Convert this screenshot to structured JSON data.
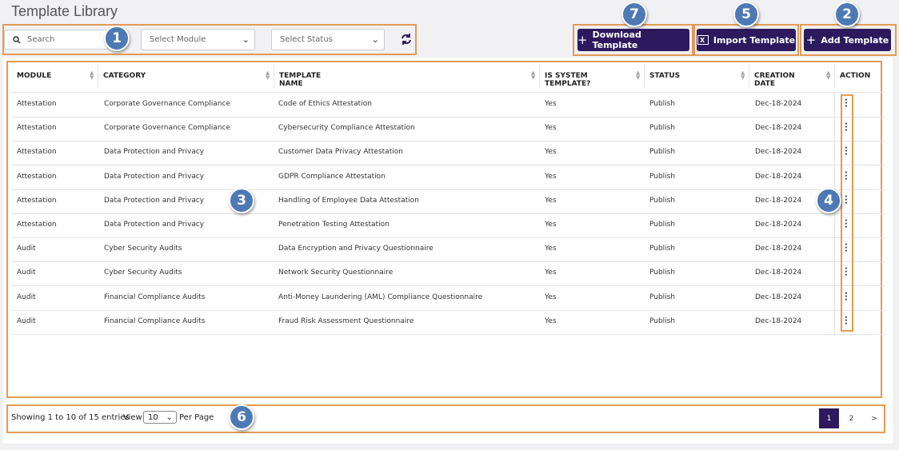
{
  "header": {
    "title": "Template Library"
  },
  "filters": {
    "search": "Search",
    "module": "Select Module",
    "status": "Select Status"
  },
  "buttons": {
    "download": "Download Template",
    "import": "Import Template",
    "add": "Add Template"
  },
  "callouts": [
    "1",
    "2",
    "3",
    "4",
    "5",
    "6",
    "7"
  ],
  "table": {
    "columns": [
      "MODULE",
      "CATEGORY",
      "TEMPLATE NAME",
      "IS SYSTEM TEMPLATE?",
      "STATUS",
      "CREATION DATE",
      "ACTION"
    ],
    "rows": [
      [
        "Attestation",
        "Corporate Governance Compliance",
        "Code of Ethics Attestation",
        "Yes",
        "Publish",
        "Dec-18-2024"
      ],
      [
        "Attestation",
        "Corporate Governance Compliance",
        "Cybersecurity Compliance Attestation",
        "Yes",
        "Publish",
        "Dec-18-2024"
      ],
      [
        "Attestation",
        "Data Protection and Privacy",
        "Customer Data Privacy Attestation",
        "Yes",
        "Publish",
        "Dec-18-2024"
      ],
      [
        "Attestation",
        "Data Protection and Privacy",
        "GDPR Compliance Attestation",
        "Yes",
        "Publish",
        "Dec-18-2024"
      ],
      [
        "Attestation",
        "Data Protection and Privacy",
        "Handling of Employee Data Attestation",
        "Yes",
        "Publish",
        "Dec-18-2024"
      ],
      [
        "Attestation",
        "Data Protection and Privacy",
        "Penetration Testing Attestation",
        "Yes",
        "Publish",
        "Dec-18-2024"
      ],
      [
        "Audit",
        "Cyber Security Audits",
        "Data Encryption and Privacy Questionnaire",
        "Yes",
        "Publish",
        "Dec-18-2024"
      ],
      [
        "Audit",
        "Cyber Security Audits",
        "Network Security Questionnaire",
        "Yes",
        "Publish",
        "Dec-18-2024"
      ],
      [
        "Audit",
        "Financial Compliance Audits",
        "Anti-Money Laundering (AML) Compliance Questionnaire",
        "Yes",
        "Publish",
        "Dec-18-2024"
      ],
      [
        "Audit",
        "Financial Compliance Audits",
        "Fraud Risk Assessment Questionnaire",
        "Yes",
        "Publish",
        "Dec-18-2024"
      ]
    ]
  },
  "pagination": {
    "summary": "Showing 1 to 10 of 15 entries",
    "view": "View",
    "per_page_value": "10",
    "per_page": "Per Page",
    "pages": [
      "1",
      "2"
    ],
    "next": ">"
  }
}
